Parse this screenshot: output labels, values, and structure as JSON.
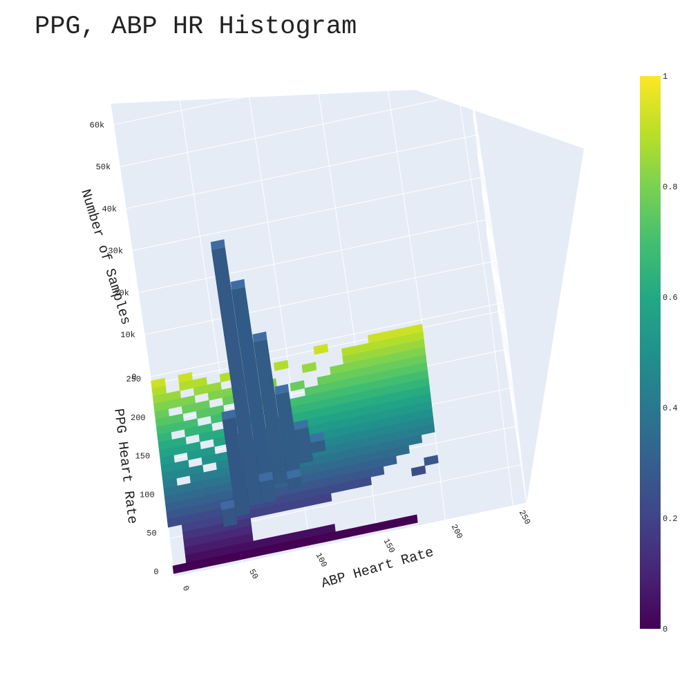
{
  "chart_data": {
    "type": "3d-histogram",
    "title": "PPG, ABP HR Histogram",
    "xlabel": "ABP Heart Rate",
    "ylabel": "PPG Heart Rate",
    "zlabel": "Number of Samples",
    "x_ticks": [
      "0",
      "50",
      "100",
      "150",
      "200",
      "250"
    ],
    "y_ticks": [
      "0",
      "50",
      "100",
      "150",
      "200",
      "250"
    ],
    "z_ticks": [
      "0",
      "10k",
      "20k",
      "30k",
      "40k",
      "50k",
      "60k"
    ],
    "xlim": [
      0,
      260
    ],
    "ylim": [
      0,
      260
    ],
    "zlim": [
      0,
      65000
    ],
    "colorscale": "Viridis",
    "colorbar_ticks": [
      "0",
      "0.2",
      "0.4",
      "0.6",
      "0.8",
      "1"
    ],
    "bin_width": 10,
    "peaks": [
      {
        "x": 65,
        "y": 75,
        "value": 61000
      },
      {
        "x": 75,
        "y": 85,
        "value": 49000
      },
      {
        "x": 85,
        "y": 95,
        "value": 34000
      },
      {
        "x": 95,
        "y": 105,
        "value": 19000
      },
      {
        "x": 55,
        "y": 65,
        "value": 23000
      },
      {
        "x": 105,
        "y": 115,
        "value": 8000
      },
      {
        "x": 45,
        "y": 55,
        "value": 4000
      },
      {
        "x": 65,
        "y": 85,
        "value": 6000
      },
      {
        "x": 75,
        "y": 75,
        "value": 5000
      },
      {
        "x": 85,
        "y": 105,
        "value": 3000
      },
      {
        "x": 55,
        "y": 75,
        "value": 4500
      },
      {
        "x": 115,
        "y": 125,
        "value": 2500
      },
      {
        "x": 95,
        "y": 85,
        "value": 2500
      },
      {
        "x": 75,
        "y": 95,
        "value": 3500
      }
    ],
    "surface_color": "height of PPG heart rate bin"
  }
}
